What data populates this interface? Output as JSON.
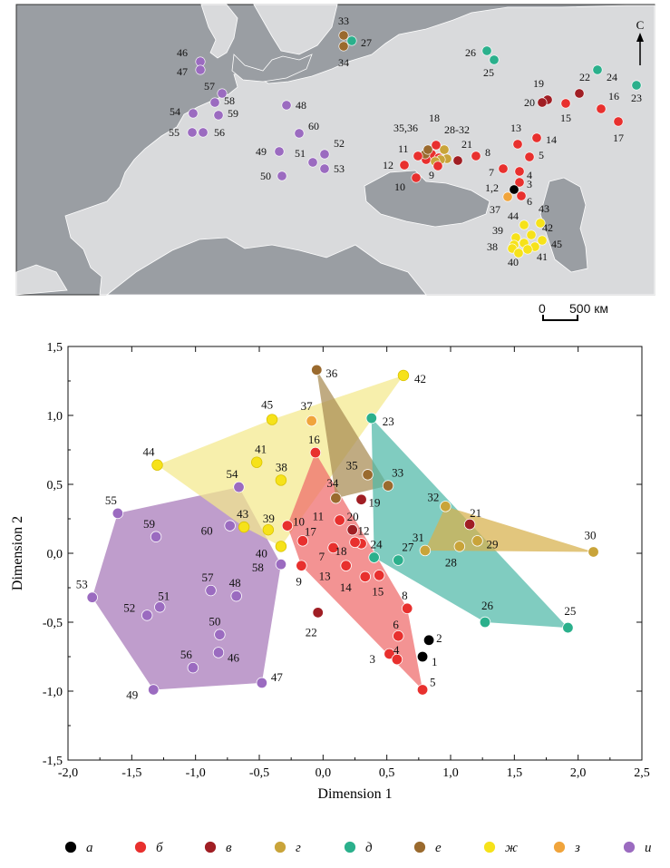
{
  "map": {
    "north_label": "С",
    "scale_zero": "0",
    "scale_label": "500 км",
    "group_colors": {
      "a": "#000000",
      "b": "#e8302e",
      "v": "#a01e24",
      "g": "#c9a43a",
      "d": "#2bb08c",
      "e": "#9a6a2e",
      "zh": "#f6e21a",
      "z": "#f0a43c",
      "i": "#9b6bc0"
    },
    "sites": [
      {
        "label": "46",
        "group": "i"
      },
      {
        "label": "47",
        "group": "i"
      },
      {
        "label": "57",
        "group": "i"
      },
      {
        "label": "58",
        "group": "i"
      },
      {
        "label": "59",
        "group": "i"
      },
      {
        "label": "54",
        "group": "i"
      },
      {
        "label": "55",
        "group": "i"
      },
      {
        "label": "56",
        "group": "i"
      },
      {
        "label": "48",
        "group": "i"
      },
      {
        "label": "60",
        "group": "i"
      },
      {
        "label": "49",
        "group": "i"
      },
      {
        "label": "52",
        "group": "i"
      },
      {
        "label": "51",
        "group": "i"
      },
      {
        "label": "53",
        "group": "i"
      },
      {
        "label": "50",
        "group": "i"
      },
      {
        "label": "33",
        "group": "e"
      },
      {
        "label": "34",
        "group": "e"
      },
      {
        "label": "27",
        "group": "d"
      },
      {
        "label": "26",
        "group": "d"
      },
      {
        "label": "25",
        "group": "d"
      },
      {
        "label": "24",
        "group": "d"
      },
      {
        "label": "23",
        "group": "d"
      },
      {
        "label": "19",
        "group": "v"
      },
      {
        "label": "20",
        "group": "v"
      },
      {
        "label": "22",
        "group": "v"
      },
      {
        "label": "15",
        "group": "b"
      },
      {
        "label": "16",
        "group": "b"
      },
      {
        "label": "17",
        "group": "b"
      },
      {
        "label": "13",
        "group": "b"
      },
      {
        "label": "14",
        "group": "b"
      },
      {
        "label": "5",
        "group": "b"
      },
      {
        "label": "7",
        "group": "b"
      },
      {
        "label": "4",
        "group": "b"
      },
      {
        "label": "3",
        "group": "b"
      },
      {
        "label": "1,2",
        "group": "a"
      },
      {
        "label": "6",
        "group": "b"
      },
      {
        "label": "37",
        "group": "z"
      },
      {
        "label": "44",
        "group": "zh"
      },
      {
        "label": "43",
        "group": "zh"
      },
      {
        "label": "39",
        "group": "zh"
      },
      {
        "label": "42",
        "group": "zh"
      },
      {
        "label": "38",
        "group": "zh"
      },
      {
        "label": "45",
        "group": "zh"
      },
      {
        "label": "40",
        "group": "zh"
      },
      {
        "label": "41",
        "group": "zh"
      },
      {
        "label": "18",
        "group": "b"
      },
      {
        "label": "35,36",
        "group": "e"
      },
      {
        "label": "28-32",
        "group": "g"
      },
      {
        "label": "11",
        "group": "b"
      },
      {
        "label": "21",
        "group": "v"
      },
      {
        "label": "8",
        "group": "b"
      },
      {
        "label": "12",
        "group": "b"
      },
      {
        "label": "9",
        "group": "b"
      },
      {
        "label": "10",
        "group": "b"
      }
    ]
  },
  "chart_data": {
    "type": "scatter",
    "xlabel": "Dimension 1",
    "ylabel": "Dimension 2",
    "xlim": [
      -2.0,
      2.5
    ],
    "ylim": [
      -1.5,
      1.5
    ],
    "x_ticks": [
      "-2,0",
      "-1,5",
      "-1,0",
      "-0,5",
      "0,0",
      "0,5",
      "1,0",
      "1,5",
      "2,0",
      "2,5"
    ],
    "y_ticks": [
      "1,5",
      "1,0",
      "0,5",
      "0,0",
      "-0,5",
      "-1,0",
      "-1,5"
    ],
    "grid": false,
    "series": [
      {
        "name": "а",
        "color": "#000000",
        "hull": false,
        "points": [
          {
            "label": "1",
            "x": 0.78,
            "y": -0.75
          },
          {
            "label": "2",
            "x": 0.83,
            "y": -0.63
          }
        ]
      },
      {
        "name": "б",
        "color": "#e8302e",
        "hull": true,
        "hull_color": "#ee6a6a",
        "points": [
          {
            "label": "3",
            "x": 0.52,
            "y": -0.73
          },
          {
            "label": "4",
            "x": 0.58,
            "y": -0.77
          },
          {
            "label": "5",
            "x": 0.78,
            "y": -0.99
          },
          {
            "label": "6",
            "x": 0.59,
            "y": -0.6
          },
          {
            "label": "7",
            "x": 0.08,
            "y": 0.04
          },
          {
            "label": "8",
            "x": 0.66,
            "y": -0.4
          },
          {
            "label": "9",
            "x": -0.17,
            "y": -0.09
          },
          {
            "label": "10",
            "x": -0.28,
            "y": 0.2
          },
          {
            "label": "11",
            "x": 0.13,
            "y": 0.24
          },
          {
            "label": "12",
            "x": 0.3,
            "y": 0.07
          },
          {
            "label": "13",
            "x": 0.18,
            "y": -0.09
          },
          {
            "label": "14",
            "x": 0.33,
            "y": -0.17
          },
          {
            "label": "15",
            "x": 0.44,
            "y": -0.16
          },
          {
            "label": "16",
            "x": -0.06,
            "y": 0.73
          },
          {
            "label": "17",
            "x": -0.16,
            "y": 0.09
          },
          {
            "label": "18",
            "x": 0.25,
            "y": 0.08
          }
        ]
      },
      {
        "name": "в",
        "color": "#a01e24",
        "hull": false,
        "points": [
          {
            "label": "19",
            "x": 0.3,
            "y": 0.39
          },
          {
            "label": "20",
            "x": 0.23,
            "y": 0.17
          },
          {
            "label": "21",
            "x": 1.15,
            "y": 0.21
          },
          {
            "label": "22",
            "x": -0.04,
            "y": -0.43
          }
        ]
      },
      {
        "name": "г",
        "color": "#c9a43a",
        "hull": true,
        "hull_color": "#d7b04b",
        "points": [
          {
            "label": "28",
            "x": 1.07,
            "y": 0.05
          },
          {
            "label": "29",
            "x": 1.21,
            "y": 0.09
          },
          {
            "label": "30",
            "x": 2.12,
            "y": 0.01
          },
          {
            "label": "31",
            "x": 0.8,
            "y": 0.02
          },
          {
            "label": "32",
            "x": 0.96,
            "y": 0.34
          }
        ]
      },
      {
        "name": "д",
        "color": "#2bb08c",
        "hull": true,
        "hull_color": "#4fb8a8",
        "points": [
          {
            "label": "23",
            "x": 0.38,
            "y": 0.98
          },
          {
            "label": "24",
            "x": 0.4,
            "y": -0.03
          },
          {
            "label": "25",
            "x": 1.92,
            "y": -0.54
          },
          {
            "label": "26",
            "x": 1.27,
            "y": -0.5
          },
          {
            "label": "27",
            "x": 0.59,
            "y": -0.05
          }
        ]
      },
      {
        "name": "е",
        "color": "#9a6a2e",
        "hull": true,
        "hull_color": "#a88a52",
        "points": [
          {
            "label": "33",
            "x": 0.51,
            "y": 0.49
          },
          {
            "label": "34",
            "x": 0.1,
            "y": 0.4
          },
          {
            "label": "35",
            "x": 0.35,
            "y": 0.57
          },
          {
            "label": "36",
            "x": -0.05,
            "y": 1.33
          }
        ]
      },
      {
        "name": "ж",
        "color": "#f6e21a",
        "hull": true,
        "hull_color": "#f4e98c",
        "points": [
          {
            "label": "38",
            "x": -0.33,
            "y": 0.53
          },
          {
            "label": "39",
            "x": -0.43,
            "y": 0.17
          },
          {
            "label": "40",
            "x": -0.33,
            "y": 0.05
          },
          {
            "label": "41",
            "x": -0.52,
            "y": 0.66
          },
          {
            "label": "42",
            "x": 0.63,
            "y": 1.29
          },
          {
            "label": "43",
            "x": -0.62,
            "y": 0.19
          },
          {
            "label": "44",
            "x": -1.3,
            "y": 0.64
          },
          {
            "label": "45",
            "x": -0.4,
            "y": 0.97
          }
        ]
      },
      {
        "name": "з",
        "color": "#f0a43c",
        "hull": false,
        "points": [
          {
            "label": "37",
            "x": -0.09,
            "y": 0.96
          }
        ]
      },
      {
        "name": "и",
        "color": "#9b6bc0",
        "hull": true,
        "hull_color": "#a677b9",
        "points": [
          {
            "label": "46",
            "x": -0.82,
            "y": -0.72
          },
          {
            "label": "47",
            "x": -0.48,
            "y": -0.94
          },
          {
            "label": "48",
            "x": -0.68,
            "y": -0.31
          },
          {
            "label": "49",
            "x": -1.33,
            "y": -0.99
          },
          {
            "label": "50",
            "x": -0.81,
            "y": -0.59
          },
          {
            "label": "51",
            "x": -1.28,
            "y": -0.39
          },
          {
            "label": "52",
            "x": -1.38,
            "y": -0.45
          },
          {
            "label": "53",
            "x": -1.81,
            "y": -0.32
          },
          {
            "label": "54",
            "x": -0.66,
            "y": 0.48
          },
          {
            "label": "55",
            "x": -1.61,
            "y": 0.29
          },
          {
            "label": "56",
            "x": -1.02,
            "y": -0.83
          },
          {
            "label": "57",
            "x": -0.88,
            "y": -0.27
          },
          {
            "label": "58",
            "x": -0.33,
            "y": -0.08
          },
          {
            "label": "59",
            "x": -1.31,
            "y": 0.12
          },
          {
            "label": "60",
            "x": -0.73,
            "y": 0.2
          }
        ]
      }
    ],
    "legend": {
      "placement": "bottom",
      "entries": [
        {
          "label": "а",
          "color": "#000000"
        },
        {
          "label": "б",
          "color": "#e8302e"
        },
        {
          "label": "в",
          "color": "#a01e24"
        },
        {
          "label": "г",
          "color": "#c9a43a"
        },
        {
          "label": "д",
          "color": "#2bb08c"
        },
        {
          "label": "е",
          "color": "#9a6a2e"
        },
        {
          "label": "ж",
          "color": "#f6e21a"
        },
        {
          "label": "з",
          "color": "#f0a43c"
        },
        {
          "label": "и",
          "color": "#9b6bc0"
        }
      ]
    }
  }
}
